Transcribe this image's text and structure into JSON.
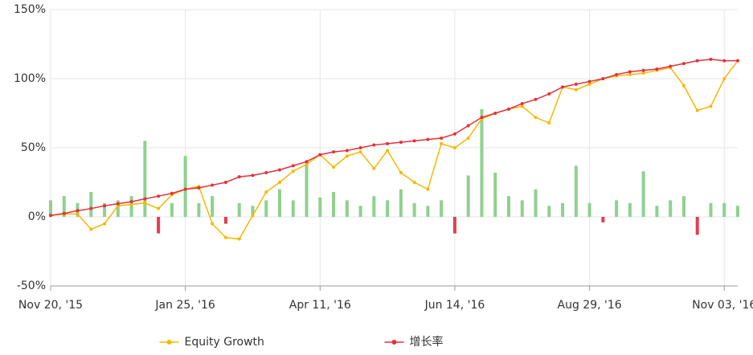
{
  "chart_data": {
    "type": "line",
    "x": [
      0,
      2,
      4,
      6,
      8,
      10,
      12,
      14,
      16,
      18,
      20,
      22,
      24,
      26,
      28,
      30,
      32,
      34,
      36,
      38,
      40,
      42,
      44,
      46,
      48,
      50,
      52,
      54,
      56,
      58,
      60,
      62,
      64,
      66,
      68,
      70,
      72,
      74,
      76,
      78,
      80,
      82,
      84,
      86,
      88,
      90,
      92,
      94,
      96,
      98,
      100,
      102
    ],
    "xlim": [
      0,
      102
    ],
    "xticks": [
      {
        "value": 0,
        "label": "Nov 20, '15"
      },
      {
        "value": 20,
        "label": "Jan 25, '16"
      },
      {
        "value": 40,
        "label": "Apr 11, '16"
      },
      {
        "value": 60,
        "label": "Jun 14, '16"
      },
      {
        "value": 80,
        "label": "Aug 29, '16"
      },
      {
        "value": 100,
        "label": "Nov 03, '16"
      }
    ],
    "ylim": [
      -50,
      150
    ],
    "yticks": [
      {
        "value": -50,
        "label": "-50%"
      },
      {
        "value": 0,
        "label": "0%"
      },
      {
        "value": 50,
        "label": "50%"
      },
      {
        "value": 100,
        "label": "100%"
      },
      {
        "value": 150,
        "label": "150%"
      }
    ],
    "grid": true,
    "legend": "bottom",
    "series": [
      {
        "type": "bar",
        "color": "#8fd18f",
        "negative_color": "#e04050",
        "values": [
          12,
          15,
          10,
          18,
          10,
          12,
          15,
          55,
          -12,
          10,
          44,
          10,
          15,
          -5,
          10,
          8,
          12,
          20,
          12,
          40,
          14,
          18,
          12,
          8,
          15,
          12,
          20,
          10,
          8,
          12,
          -12,
          30,
          78,
          32,
          15,
          12,
          20,
          8,
          10,
          37,
          10,
          -4,
          12,
          10,
          33,
          8,
          12,
          15,
          -13,
          10,
          10,
          8
        ]
      },
      {
        "type": "line",
        "name": "Equity Growth",
        "color": "#f5b800",
        "values": [
          1,
          2,
          2,
          -9,
          -5,
          8,
          9,
          10,
          6,
          16,
          20,
          22,
          -5,
          -15,
          -16,
          1,
          18,
          25,
          33,
          38,
          45,
          36,
          44,
          47,
          35,
          48,
          32,
          25,
          20,
          53,
          50,
          57,
          71,
          75,
          78,
          80,
          72,
          68,
          94,
          92,
          96,
          100,
          102,
          103,
          104,
          106,
          108,
          95,
          77,
          80,
          100,
          113
        ]
      },
      {
        "type": "line",
        "name": "增长率",
        "color": "#e2323c",
        "values": [
          1,
          2.5,
          4.5,
          6,
          8,
          9.5,
          11,
          13,
          15,
          17,
          20,
          21,
          23,
          25,
          29,
          30,
          32,
          34,
          37,
          40,
          45,
          47,
          48,
          50,
          52,
          53,
          54,
          55,
          56,
          57,
          60,
          66,
          72,
          75,
          78,
          82,
          85,
          89,
          94,
          96,
          98,
          100,
          103,
          105,
          106,
          107,
          109,
          111,
          113,
          114,
          113,
          113
        ]
      }
    ]
  }
}
